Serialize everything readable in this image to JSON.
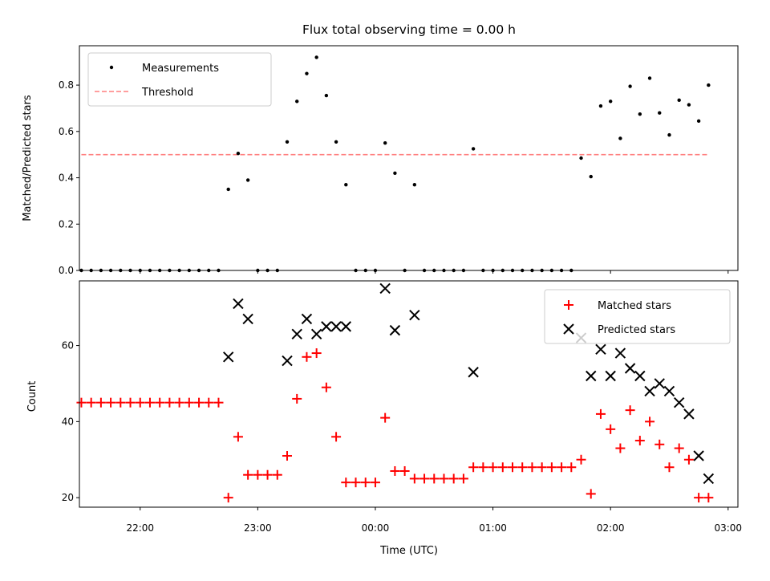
{
  "chart_data": [
    {
      "type": "scatter",
      "title": "Flux total observing time = 0.00 h",
      "xlabel": "",
      "ylabel": "Matched/Predicted stars",
      "ylim": [
        0,
        0.97
      ],
      "yticks": [
        0.0,
        0.2,
        0.4,
        0.6,
        0.8
      ],
      "ytick_labels": [
        "0.0",
        "0.2",
        "0.4",
        "0.6",
        "0.8"
      ],
      "xlim": [
        "21:29",
        "03:05"
      ],
      "legend_position": "top-left",
      "threshold": {
        "name": "Threshold",
        "value": 0.5,
        "x_range": [
          "21:30",
          "02:50"
        ],
        "color": "#ff7f7f"
      },
      "series": [
        {
          "name": "Measurements",
          "color": "#000000",
          "points": [
            [
              "21:30",
              0
            ],
            [
              "21:35",
              0
            ],
            [
              "21:40",
              0
            ],
            [
              "21:45",
              0
            ],
            [
              "21:50",
              0
            ],
            [
              "21:55",
              0
            ],
            [
              "22:00",
              0
            ],
            [
              "22:05",
              0
            ],
            [
              "22:10",
              0
            ],
            [
              "22:15",
              0
            ],
            [
              "22:20",
              0
            ],
            [
              "22:25",
              0
            ],
            [
              "22:30",
              0
            ],
            [
              "22:35",
              0
            ],
            [
              "22:40",
              0
            ],
            [
              "22:45",
              0.35
            ],
            [
              "22:50",
              0.505
            ],
            [
              "22:55",
              0.39
            ],
            [
              "23:00",
              0
            ],
            [
              "23:05",
              0
            ],
            [
              "23:10",
              0
            ],
            [
              "23:15",
              0.555
            ],
            [
              "23:20",
              0.73
            ],
            [
              "23:25",
              0.85
            ],
            [
              "23:30",
              0.92
            ],
            [
              "23:35",
              0.755
            ],
            [
              "23:40",
              0.555
            ],
            [
              "23:45",
              0.37
            ],
            [
              "23:50",
              0
            ],
            [
              "23:55",
              0
            ],
            [
              "00:00",
              0
            ],
            [
              "00:05",
              0.55
            ],
            [
              "00:10",
              0.42
            ],
            [
              "00:15",
              0
            ],
            [
              "00:20",
              0.37
            ],
            [
              "00:25",
              0
            ],
            [
              "00:30",
              0
            ],
            [
              "00:35",
              0
            ],
            [
              "00:40",
              0
            ],
            [
              "00:45",
              0
            ],
            [
              "00:50",
              0.525
            ],
            [
              "00:55",
              0
            ],
            [
              "01:00",
              0
            ],
            [
              "01:05",
              0
            ],
            [
              "01:10",
              0
            ],
            [
              "01:15",
              0
            ],
            [
              "01:20",
              0
            ],
            [
              "01:25",
              0
            ],
            [
              "01:30",
              0
            ],
            [
              "01:35",
              0
            ],
            [
              "01:40",
              0
            ],
            [
              "01:45",
              0.485
            ],
            [
              "01:50",
              0.405
            ],
            [
              "01:55",
              0.71
            ],
            [
              "02:00",
              0.73
            ],
            [
              "02:05",
              0.57
            ],
            [
              "02:10",
              0.795
            ],
            [
              "02:15",
              0.675
            ],
            [
              "02:20",
              0.83
            ],
            [
              "02:25",
              0.68
            ],
            [
              "02:30",
              0.585
            ],
            [
              "02:35",
              0.735
            ],
            [
              "02:40",
              0.715
            ],
            [
              "02:45",
              0.645
            ],
            [
              "02:50",
              0.8
            ]
          ]
        }
      ]
    },
    {
      "type": "scatter",
      "title": "",
      "xlabel": "Time (UTC)",
      "ylabel": "Count",
      "ylim": [
        17.5,
        77
      ],
      "yticks": [
        20,
        40,
        60
      ],
      "ytick_labels": [
        "20",
        "40",
        "60"
      ],
      "xlim": [
        "21:29",
        "03:05"
      ],
      "xticks": [
        "22:00",
        "23:00",
        "00:00",
        "01:00",
        "02:00",
        "03:00"
      ],
      "legend_position": "top-right",
      "series": [
        {
          "name": "Matched stars",
          "marker": "plus",
          "color": "#ff0000",
          "points": [
            [
              "21:30",
              45
            ],
            [
              "21:35",
              45
            ],
            [
              "21:40",
              45
            ],
            [
              "21:45",
              45
            ],
            [
              "21:50",
              45
            ],
            [
              "21:55",
              45
            ],
            [
              "22:00",
              45
            ],
            [
              "22:05",
              45
            ],
            [
              "22:10",
              45
            ],
            [
              "22:15",
              45
            ],
            [
              "22:20",
              45
            ],
            [
              "22:25",
              45
            ],
            [
              "22:30",
              45
            ],
            [
              "22:35",
              45
            ],
            [
              "22:40",
              45
            ],
            [
              "22:45",
              20
            ],
            [
              "22:50",
              36
            ],
            [
              "22:55",
              26
            ],
            [
              "23:00",
              26
            ],
            [
              "23:05",
              26
            ],
            [
              "23:10",
              26
            ],
            [
              "23:15",
              31
            ],
            [
              "23:20",
              46
            ],
            [
              "23:25",
              57
            ],
            [
              "23:30",
              58
            ],
            [
              "23:35",
              49
            ],
            [
              "23:40",
              36
            ],
            [
              "23:45",
              24
            ],
            [
              "23:50",
              24
            ],
            [
              "23:55",
              24
            ],
            [
              "00:00",
              24
            ],
            [
              "00:05",
              41
            ],
            [
              "00:10",
              27
            ],
            [
              "00:15",
              27
            ],
            [
              "00:20",
              25
            ],
            [
              "00:25",
              25
            ],
            [
              "00:30",
              25
            ],
            [
              "00:35",
              25
            ],
            [
              "00:40",
              25
            ],
            [
              "00:45",
              25
            ],
            [
              "00:50",
              28
            ],
            [
              "00:55",
              28
            ],
            [
              "01:00",
              28
            ],
            [
              "01:05",
              28
            ],
            [
              "01:10",
              28
            ],
            [
              "01:15",
              28
            ],
            [
              "01:20",
              28
            ],
            [
              "01:25",
              28
            ],
            [
              "01:30",
              28
            ],
            [
              "01:35",
              28
            ],
            [
              "01:40",
              28
            ],
            [
              "01:45",
              30
            ],
            [
              "01:50",
              21
            ],
            [
              "01:55",
              42
            ],
            [
              "02:00",
              38
            ],
            [
              "02:05",
              33
            ],
            [
              "02:10",
              43
            ],
            [
              "02:15",
              35
            ],
            [
              "02:20",
              40
            ],
            [
              "02:25",
              34
            ],
            [
              "02:30",
              28
            ],
            [
              "02:35",
              33
            ],
            [
              "02:40",
              30
            ],
            [
              "02:45",
              20
            ],
            [
              "02:50",
              20
            ]
          ]
        },
        {
          "name": "Predicted stars",
          "marker": "x",
          "color": "#000000",
          "points": [
            [
              "22:45",
              57
            ],
            [
              "22:50",
              71
            ],
            [
              "22:55",
              67
            ],
            [
              "23:15",
              56
            ],
            [
              "23:20",
              63
            ],
            [
              "23:25",
              67
            ],
            [
              "23:30",
              63
            ],
            [
              "23:35",
              65
            ],
            [
              "23:40",
              65
            ],
            [
              "23:45",
              65
            ],
            [
              "00:05",
              75
            ],
            [
              "00:10",
              64
            ],
            [
              "00:20",
              68
            ],
            [
              "00:50",
              53
            ],
            [
              "01:45",
              62
            ],
            [
              "01:50",
              52
            ],
            [
              "01:55",
              59
            ],
            [
              "02:00",
              52
            ],
            [
              "02:05",
              58
            ],
            [
              "02:10",
              54
            ],
            [
              "02:15",
              52
            ],
            [
              "02:20",
              48
            ],
            [
              "02:25",
              50
            ],
            [
              "02:30",
              48
            ],
            [
              "02:35",
              45
            ],
            [
              "02:40",
              42
            ],
            [
              "02:45",
              31
            ],
            [
              "02:50",
              25
            ]
          ]
        }
      ]
    }
  ]
}
